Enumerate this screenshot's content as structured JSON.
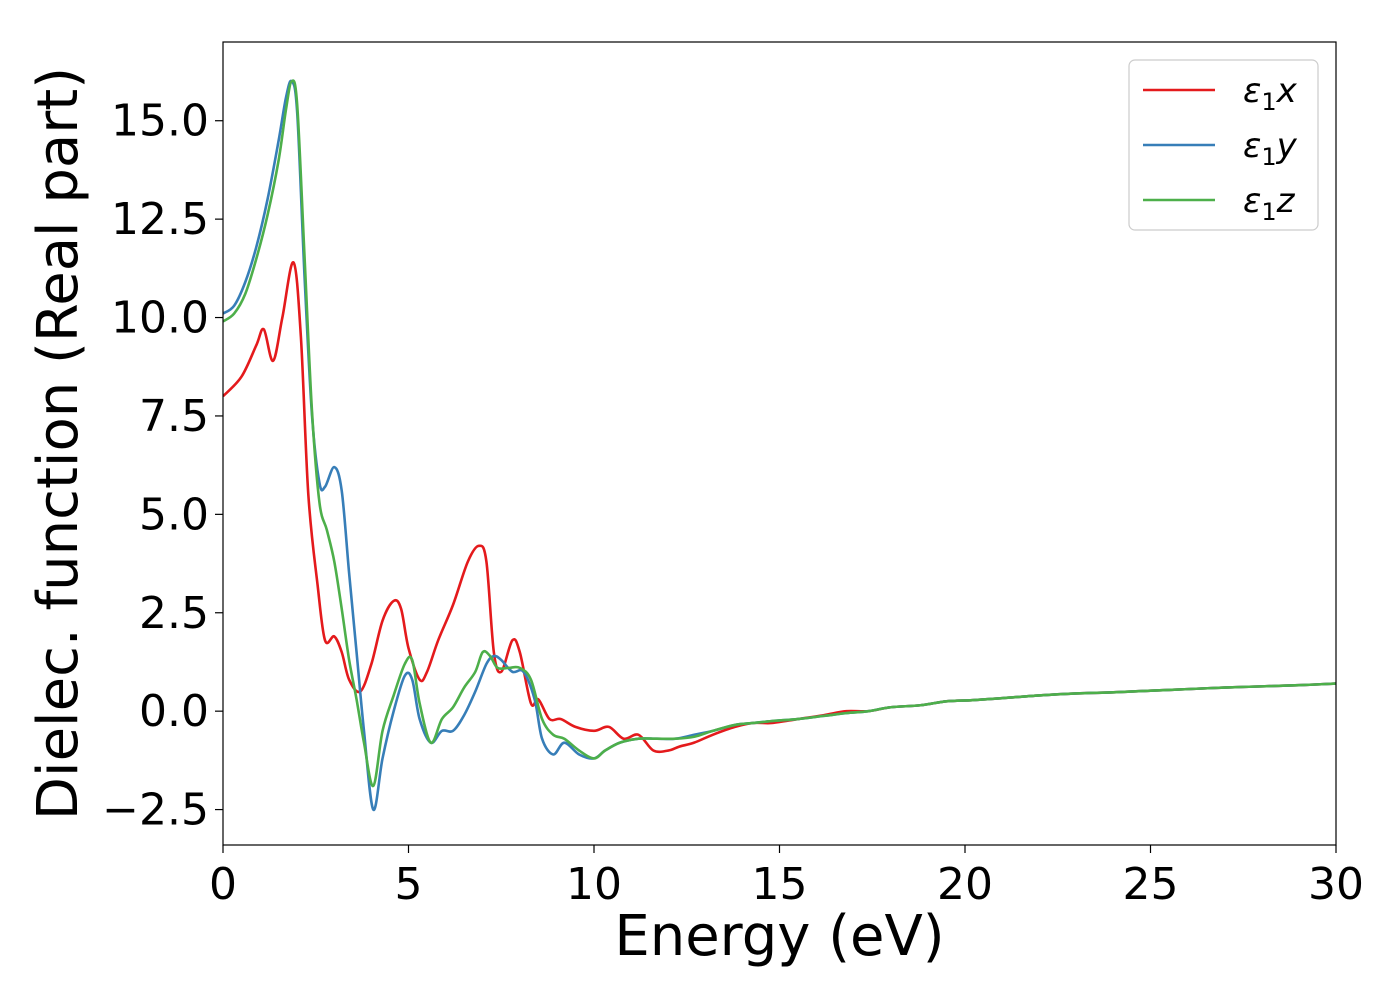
{
  "chart_data": {
    "type": "line",
    "xlabel": "Energy (eV)",
    "ylabel": "Dielec. function (Real part)",
    "xlim": [
      0,
      30
    ],
    "ylim": [
      -3.4,
      17.0
    ],
    "xticks": [
      0,
      5,
      10,
      15,
      20,
      25,
      30
    ],
    "xtick_labels": [
      "0",
      "5",
      "10",
      "15",
      "20",
      "25",
      "30"
    ],
    "yticks": [
      -2.5,
      0.0,
      2.5,
      5.0,
      7.5,
      10.0,
      12.5,
      15.0
    ],
    "ytick_labels": [
      "−2.5",
      "0.0",
      "2.5",
      "5.0",
      "7.5",
      "10.0",
      "12.5",
      "15.0"
    ],
    "grid": false,
    "legend_position": "top-right",
    "series": [
      {
        "name": "ε",
        "name_sub": "1",
        "name_suffix": "x",
        "color": "#e41a1c",
        "x": [
          0,
          0.5,
          0.9,
          1.1,
          1.35,
          1.6,
          1.9,
          2.1,
          2.3,
          2.55,
          2.75,
          3.0,
          3.2,
          3.4,
          3.7,
          4.0,
          4.3,
          4.6,
          4.8,
          5.0,
          5.3,
          5.5,
          5.8,
          6.2,
          6.6,
          6.9,
          7.1,
          7.3,
          7.5,
          7.8,
          8.0,
          8.3,
          8.5,
          8.8,
          9.1,
          9.5,
          10.0,
          10.4,
          10.8,
          11.2,
          11.6,
          12.0,
          12.3,
          12.7,
          13.2,
          13.8,
          14.3,
          14.8,
          15.5,
          16.2,
          16.8,
          17.4,
          18.0,
          18.8,
          19.5,
          20.2,
          21.0,
          22.0,
          23.0,
          24.0,
          25.0,
          26.0,
          27.0,
          28.0,
          29.0,
          30.0
        ],
        "y": [
          8.0,
          8.5,
          9.3,
          9.7,
          8.9,
          10.0,
          11.4,
          9.5,
          5.5,
          3.2,
          1.8,
          1.9,
          1.5,
          0.8,
          0.5,
          1.2,
          2.3,
          2.8,
          2.6,
          1.6,
          0.8,
          1.0,
          1.8,
          2.7,
          3.8,
          4.2,
          3.8,
          1.5,
          1.0,
          1.8,
          1.5,
          0.2,
          0.3,
          -0.2,
          -0.2,
          -0.4,
          -0.5,
          -0.4,
          -0.7,
          -0.6,
          -1.0,
          -1.0,
          -0.9,
          -0.8,
          -0.6,
          -0.4,
          -0.3,
          -0.3,
          -0.2,
          -0.1,
          0.0,
          0.0,
          0.1,
          0.15,
          0.25,
          0.28,
          0.33,
          0.4,
          0.45,
          0.48,
          0.52,
          0.56,
          0.6,
          0.63,
          0.66,
          0.7
        ]
      },
      {
        "name": "ε",
        "name_sub": "1",
        "name_suffix": "y",
        "color": "#377eb8",
        "x": [
          0,
          0.3,
          0.6,
          0.9,
          1.2,
          1.5,
          1.7,
          1.85,
          2.0,
          2.2,
          2.4,
          2.6,
          2.75,
          3.0,
          3.2,
          3.4,
          3.6,
          3.8,
          4.05,
          4.3,
          4.6,
          4.9,
          5.1,
          5.3,
          5.6,
          5.9,
          6.2,
          6.5,
          6.8,
          7.1,
          7.3,
          7.5,
          7.8,
          8.1,
          8.4,
          8.6,
          8.9,
          9.2,
          9.6,
          10.0,
          10.3,
          10.7,
          11.2,
          11.7,
          12.2,
          12.7,
          13.2,
          13.8,
          14.3,
          14.8,
          15.5,
          16.2,
          16.8,
          17.4,
          18.0,
          18.8,
          19.5,
          20.2,
          21.0,
          22.0,
          23.0,
          24.0,
          25.0,
          26.0,
          27.0,
          28.0,
          29.0,
          30.0
        ],
        "y": [
          10.1,
          10.3,
          10.9,
          11.8,
          13.0,
          14.5,
          15.6,
          16.0,
          15.2,
          11.0,
          7.5,
          5.8,
          5.7,
          6.2,
          5.6,
          3.5,
          1.5,
          -0.5,
          -2.5,
          -1.2,
          0.0,
          0.9,
          0.8,
          -0.2,
          -0.8,
          -0.5,
          -0.5,
          -0.1,
          0.5,
          1.2,
          1.4,
          1.3,
          1.0,
          1.0,
          0.3,
          -0.7,
          -1.1,
          -0.8,
          -1.1,
          -1.2,
          -1.0,
          -0.8,
          -0.7,
          -0.7,
          -0.7,
          -0.6,
          -0.5,
          -0.35,
          -0.3,
          -0.25,
          -0.2,
          -0.12,
          -0.05,
          0.0,
          0.1,
          0.15,
          0.25,
          0.28,
          0.33,
          0.4,
          0.45,
          0.48,
          0.52,
          0.56,
          0.6,
          0.63,
          0.66,
          0.7
        ]
      },
      {
        "name": "ε",
        "name_sub": "1",
        "name_suffix": "z",
        "color": "#4daf4a",
        "x": [
          0,
          0.3,
          0.6,
          0.9,
          1.2,
          1.5,
          1.7,
          1.85,
          2.0,
          2.2,
          2.4,
          2.6,
          2.8,
          3.0,
          3.2,
          3.4,
          3.6,
          3.8,
          4.05,
          4.3,
          4.6,
          4.9,
          5.1,
          5.3,
          5.6,
          5.9,
          6.2,
          6.5,
          6.8,
          7.0,
          7.2,
          7.4,
          7.7,
          8.0,
          8.3,
          8.6,
          8.9,
          9.2,
          9.6,
          10.0,
          10.3,
          10.7,
          11.2,
          11.7,
          12.2,
          12.7,
          13.2,
          13.8,
          14.3,
          14.8,
          15.5,
          16.2,
          16.8,
          17.4,
          18.0,
          18.8,
          19.5,
          20.2,
          21.0,
          22.0,
          23.0,
          24.0,
          25.0,
          26.0,
          27.0,
          28.0,
          29.0,
          30.0
        ],
        "y": [
          9.9,
          10.1,
          10.6,
          11.5,
          12.6,
          14.0,
          15.3,
          16.0,
          15.4,
          11.5,
          7.6,
          5.3,
          4.6,
          3.8,
          2.6,
          1.3,
          0.3,
          -0.8,
          -1.9,
          -0.5,
          0.4,
          1.2,
          1.3,
          0.2,
          -0.8,
          -0.2,
          0.1,
          0.6,
          1.0,
          1.5,
          1.4,
          1.1,
          1.1,
          1.1,
          0.8,
          -0.2,
          -0.6,
          -0.7,
          -1.0,
          -1.2,
          -1.0,
          -0.8,
          -0.7,
          -0.7,
          -0.7,
          -0.65,
          -0.5,
          -0.35,
          -0.3,
          -0.25,
          -0.2,
          -0.12,
          -0.05,
          0.0,
          0.1,
          0.15,
          0.25,
          0.28,
          0.33,
          0.4,
          0.45,
          0.48,
          0.52,
          0.56,
          0.6,
          0.63,
          0.66,
          0.7
        ]
      }
    ]
  }
}
